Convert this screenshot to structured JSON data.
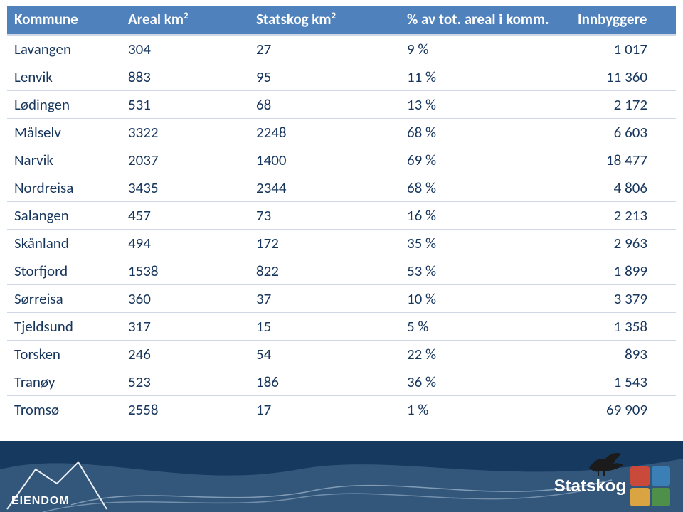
{
  "table": {
    "header_bg": "#4f81bd",
    "header_fg": "#ffffff",
    "cell_fg": "#17365d",
    "row_border": "#d0d7e5",
    "columns": [
      {
        "key": "kommune",
        "html": "Kommune"
      },
      {
        "key": "areal",
        "html": "Areal km<sup>2</sup>"
      },
      {
        "key": "statskog",
        "html": "Statskog km<sup>2</sup>"
      },
      {
        "key": "pct",
        "html": "% av tot. areal i komm."
      },
      {
        "key": "innb",
        "html": "Innbyggere"
      }
    ],
    "rows": [
      {
        "kommune": "Lavangen",
        "areal": "304",
        "statskog": "27",
        "pct": "9 %",
        "innb": "1 017"
      },
      {
        "kommune": "Lenvik",
        "areal": "883",
        "statskog": "95",
        "pct": "11 %",
        "innb": "11 360"
      },
      {
        "kommune": "Lødingen",
        "areal": "531",
        "statskog": "68",
        "pct": "13 %",
        "innb": "2 172"
      },
      {
        "kommune": "Målselv",
        "areal": "3322",
        "statskog": "2248",
        "pct": "68 %",
        "innb": "6 603"
      },
      {
        "kommune": "Narvik",
        "areal": "2037",
        "statskog": "1400",
        "pct": "69 %",
        "innb": "18 477"
      },
      {
        "kommune": "Nordreisa",
        "areal": "3435",
        "statskog": "2344",
        "pct": "68 %",
        "innb": "4 806"
      },
      {
        "kommune": "Salangen",
        "areal": "457",
        "statskog": "73",
        "pct": "16 %",
        "innb": "2 213"
      },
      {
        "kommune": "Skånland",
        "areal": "494",
        "statskog": "172",
        "pct": "35 %",
        "innb": "2 963"
      },
      {
        "kommune": "Storfjord",
        "areal": "1538",
        "statskog": "822",
        "pct": "53 %",
        "innb": "1 899"
      },
      {
        "kommune": "Sørreisa",
        "areal": "360",
        "statskog": "37",
        "pct": "10 %",
        "innb": "3 379"
      },
      {
        "kommune": "Tjeldsund",
        "areal": "317",
        "statskog": "15",
        "pct": "5 %",
        "innb": "1 358"
      },
      {
        "kommune": "Torsken",
        "areal": "246",
        "statskog": "54",
        "pct": "22 %",
        "innb": "893"
      },
      {
        "kommune": "Tranøy",
        "areal": "523",
        "statskog": "186",
        "pct": "36 %",
        "innb": "1 543"
      },
      {
        "kommune": "Tromsø",
        "areal": "2558",
        "statskog": "17",
        "pct": "1 %",
        "innb": "69 909"
      }
    ]
  },
  "footer": {
    "band_color": "#163a5f",
    "wave_color_light": "#6a8fb3",
    "wave_color_outline": "#c2d5e8",
    "eiendom_label": "EIENDOM",
    "statskog_label": "Statskog",
    "logo_colors": {
      "tl": "#c94a3b",
      "tr": "#3a7fb5",
      "bl": "#d9a441",
      "br": "#4e8f4a"
    }
  }
}
